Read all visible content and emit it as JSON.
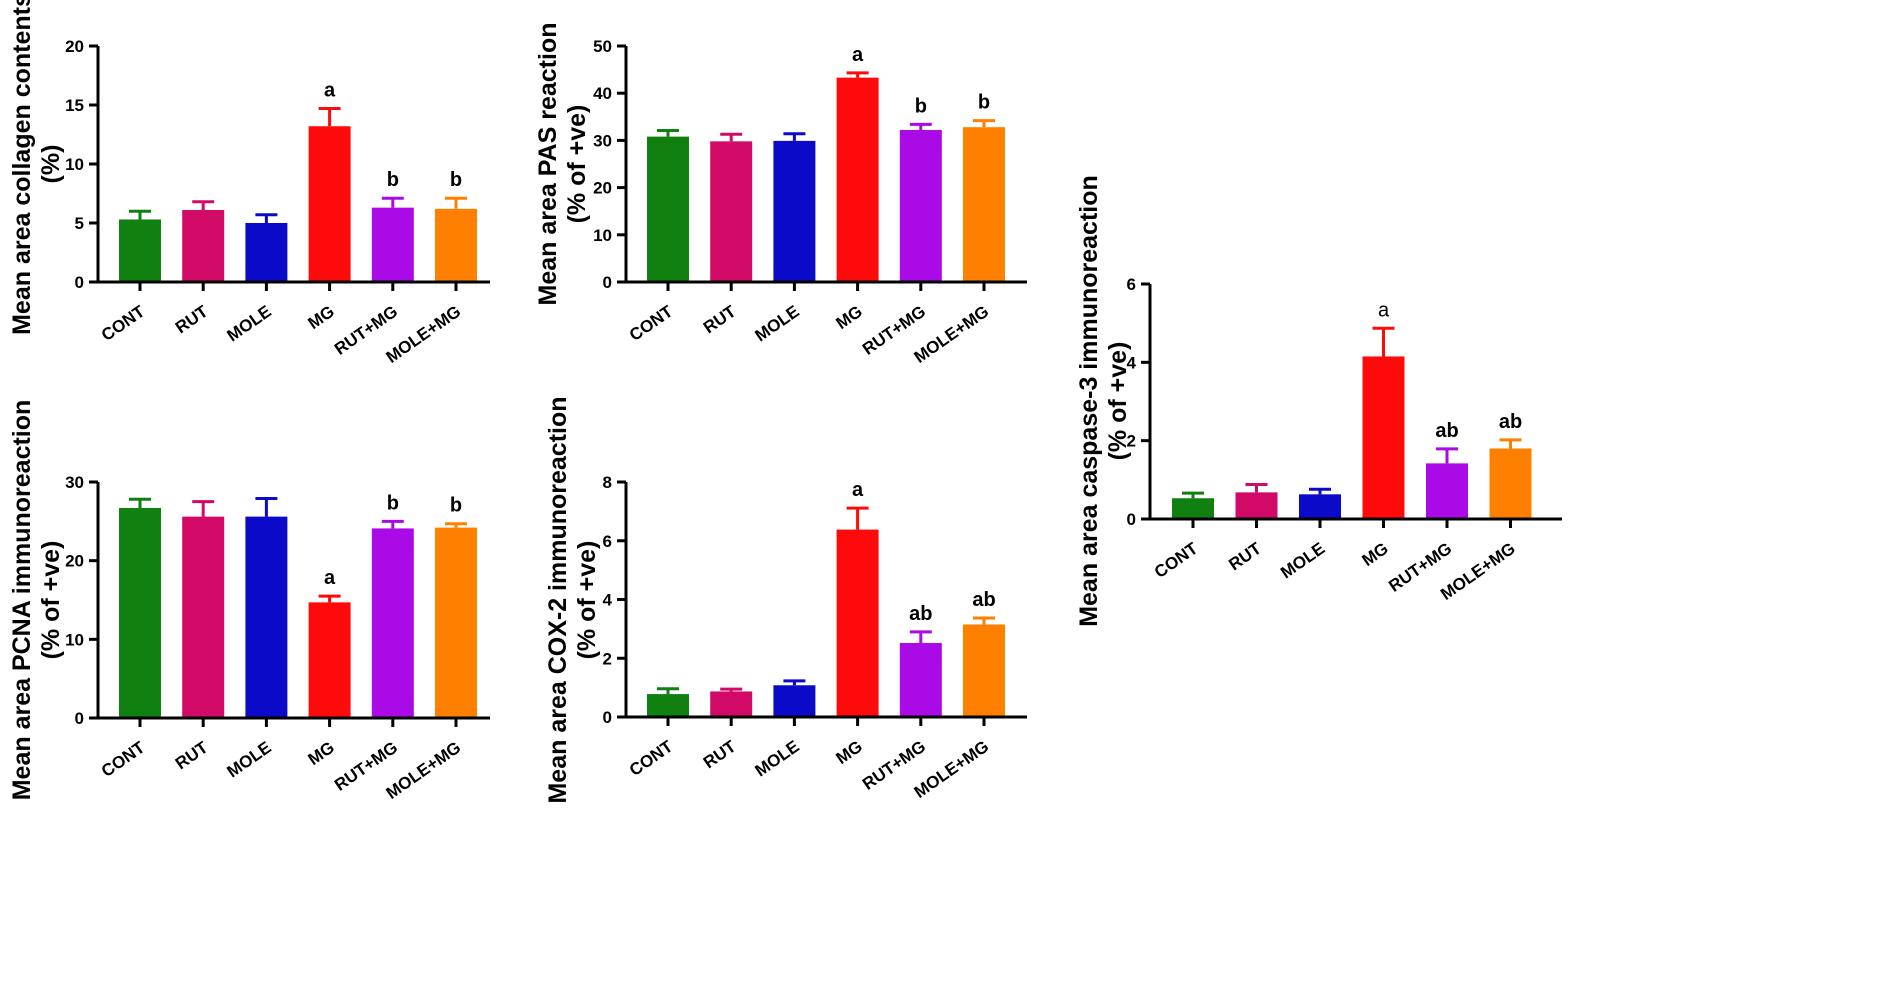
{
  "chart_data": [
    {
      "type": "bar",
      "panel": "collagen",
      "ylabel_lines": [
        "Mean area collagen contents",
        "(%)"
      ],
      "categories": [
        "CONT",
        "RUT",
        "MOLE",
        "MG",
        "RUT+MG",
        "MOLE+MG"
      ],
      "values": [
        5.3,
        6.1,
        5.0,
        13.2,
        6.3,
        6.2
      ],
      "errors": [
        0.7,
        0.7,
        0.7,
        1.5,
        0.8,
        0.9
      ],
      "sig_labels": [
        "",
        "",
        "",
        "a",
        "b",
        "b"
      ],
      "sig_style": "bold",
      "ylim": [
        0,
        20
      ],
      "yticks": [
        0,
        5,
        10,
        15,
        20
      ],
      "colors": [
        "#108010",
        "#d10a68",
        "#0a0ac8",
        "#ff0a0a",
        "#a90ae6",
        "#ff8000"
      ]
    },
    {
      "type": "bar",
      "panel": "pas",
      "ylabel_lines": [
        "Mean area PAS reaction",
        "(% of +ve)"
      ],
      "categories": [
        "CONT",
        "RUT",
        "MOLE",
        "MG",
        "RUT+MG",
        "MOLE+MG"
      ],
      "values": [
        30.8,
        29.8,
        29.9,
        43.3,
        32.2,
        32.8
      ],
      "errors": [
        1.3,
        1.5,
        1.5,
        1.0,
        1.2,
        1.4
      ],
      "sig_labels": [
        "",
        "",
        "",
        "a",
        "b",
        "b"
      ],
      "sig_style": "bold",
      "ylim": [
        0,
        50
      ],
      "yticks": [
        0,
        10,
        20,
        30,
        40,
        50
      ],
      "colors": [
        "#108010",
        "#d10a68",
        "#0a0ac8",
        "#ff0a0a",
        "#a90ae6",
        "#ff8000"
      ]
    },
    {
      "type": "bar",
      "panel": "caspase3",
      "ylabel_lines": [
        "Mean area caspase-3 immunoreaction",
        "(% of +ve)"
      ],
      "categories": [
        "CONT",
        "RUT",
        "MOLE",
        "MG",
        "RUT+MG",
        "MOLE+MG"
      ],
      "values": [
        0.53,
        0.68,
        0.63,
        4.15,
        1.42,
        1.8
      ],
      "errors": [
        0.13,
        0.2,
        0.13,
        0.72,
        0.37,
        0.22
      ],
      "sig_labels": [
        "",
        "",
        "",
        "a",
        "ab",
        "ab"
      ],
      "sig_style": "mixed",
      "ylim": [
        0,
        6
      ],
      "yticks": [
        0,
        2,
        4,
        6
      ],
      "colors": [
        "#108010",
        "#d10a68",
        "#0a0ac8",
        "#ff0a0a",
        "#a90ae6",
        "#ff8000"
      ]
    },
    {
      "type": "bar",
      "panel": "pcna",
      "ylabel_lines": [
        "Mean area PCNA immunoreaction",
        "(% of +ve)"
      ],
      "categories": [
        "CONT",
        "RUT",
        "MOLE",
        "MG",
        "RUT+MG",
        "MOLE+MG"
      ],
      "values": [
        26.7,
        25.6,
        25.6,
        14.7,
        24.1,
        24.2
      ],
      "errors": [
        1.1,
        1.9,
        2.3,
        0.8,
        0.9,
        0.5
      ],
      "sig_labels": [
        "",
        "",
        "",
        "a",
        "b",
        "b"
      ],
      "sig_style": "bold",
      "ylim": [
        0,
        30
      ],
      "yticks": [
        0,
        10,
        20,
        30
      ],
      "colors": [
        "#108010",
        "#d10a68",
        "#0a0ac8",
        "#ff0a0a",
        "#a90ae6",
        "#ff8000"
      ]
    },
    {
      "type": "bar",
      "panel": "cox2",
      "ylabel_lines": [
        "Mean area COX-2 immunoreaction",
        "(% of +ve)"
      ],
      "categories": [
        "CONT",
        "RUT",
        "MOLE",
        "MG",
        "RUT+MG",
        "MOLE+MG"
      ],
      "values": [
        0.78,
        0.87,
        1.08,
        6.38,
        2.52,
        3.15
      ],
      "errors": [
        0.18,
        0.08,
        0.15,
        0.73,
        0.38,
        0.22
      ],
      "sig_labels": [
        "",
        "",
        "",
        "a",
        "ab",
        "ab"
      ],
      "sig_style": "bold",
      "ylim": [
        0,
        8
      ],
      "yticks": [
        0,
        2,
        4,
        6,
        8
      ],
      "colors": [
        "#108010",
        "#d10a68",
        "#0a0ac8",
        "#ff0a0a",
        "#a90ae6",
        "#ff8000"
      ]
    }
  ]
}
